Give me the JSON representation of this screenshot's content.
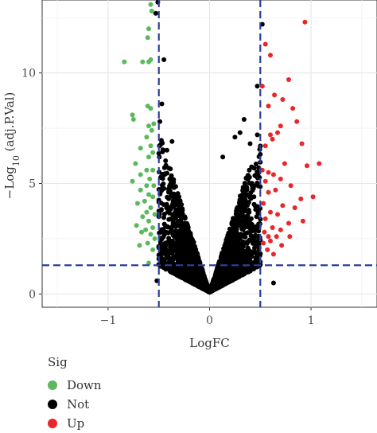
{
  "chart_data": {
    "type": "scatter",
    "xlabel": "LogFC",
    "ylabel_prefix": "−Log",
    "ylabel_sub": "10",
    "ylabel_suffix": " (adj.P.Val)",
    "xlim": [
      -1.65,
      1.65
    ],
    "ylim": [
      -0.6,
      13.3
    ],
    "xticks": [
      -1,
      0,
      1
    ],
    "yticks": [
      0,
      5,
      10
    ],
    "xtick_labels": [
      "−1",
      "0",
      "1"
    ],
    "ytick_labels": [
      "0",
      "5",
      "10"
    ],
    "grid": true,
    "thresholds": {
      "logfc": [
        -0.5,
        0.5
      ],
      "neglog10p": 1.3
    },
    "threshold_color": "#2c3e99",
    "colors": {
      "Down": "#5cb85c",
      "Not": "#000000",
      "Up": "#e8262b"
    },
    "legend": {
      "title": "Sig",
      "placement": "bottom-left",
      "labels": [
        "Down",
        "Not",
        "Up"
      ]
    },
    "series": [
      {
        "name": "Down",
        "points": [
          [
            -0.58,
            13.1
          ],
          [
            -0.57,
            12.8
          ],
          [
            -0.6,
            12.0
          ],
          [
            -0.61,
            11.6
          ],
          [
            -0.84,
            10.5
          ],
          [
            -0.6,
            10.5
          ],
          [
            -0.58,
            10.6
          ],
          [
            -0.66,
            10.5
          ],
          [
            -0.61,
            8.5
          ],
          [
            -0.58,
            8.4
          ],
          [
            -0.76,
            8.1
          ],
          [
            -0.75,
            7.9
          ],
          [
            -0.55,
            7.7
          ],
          [
            -0.6,
            7.6
          ],
          [
            -0.57,
            7.4
          ],
          [
            -0.62,
            7.1
          ],
          [
            -0.58,
            6.7
          ],
          [
            -0.68,
            6.6
          ],
          [
            -0.56,
            6.4
          ],
          [
            -0.6,
            6.2
          ],
          [
            -0.73,
            5.9
          ],
          [
            -0.62,
            5.6
          ],
          [
            -0.56,
            5.6
          ],
          [
            -0.68,
            5.4
          ],
          [
            -0.59,
            5.2
          ],
          [
            -0.76,
            5.1
          ],
          [
            -0.62,
            4.9
          ],
          [
            -0.55,
            4.9
          ],
          [
            -0.68,
            4.7
          ],
          [
            -0.6,
            4.5
          ],
          [
            -0.56,
            4.4
          ],
          [
            -0.64,
            4.2
          ],
          [
            -0.71,
            4.1
          ],
          [
            -0.58,
            3.9
          ],
          [
            -0.62,
            3.7
          ],
          [
            -0.54,
            3.6
          ],
          [
            -0.66,
            3.5
          ],
          [
            -0.6,
            3.3
          ],
          [
            -0.72,
            3.1
          ],
          [
            -0.56,
            3.0
          ],
          [
            -0.63,
            2.9
          ],
          [
            -0.67,
            2.8
          ],
          [
            -0.58,
            2.7
          ],
          [
            -0.54,
            2.5
          ],
          [
            -0.61,
            2.3
          ],
          [
            -0.69,
            2.2
          ],
          [
            -0.56,
            2.0
          ],
          [
            -0.6,
            1.4
          ]
        ]
      },
      {
        "name": "Up",
        "points": [
          [
            0.94,
            12.3
          ],
          [
            0.55,
            11.3
          ],
          [
            0.6,
            10.8
          ],
          [
            0.78,
            9.7
          ],
          [
            0.52,
            9.4
          ],
          [
            0.64,
            9.0
          ],
          [
            0.72,
            8.8
          ],
          [
            0.58,
            8.5
          ],
          [
            0.82,
            8.4
          ],
          [
            0.86,
            7.8
          ],
          [
            0.7,
            7.6
          ],
          [
            0.6,
            7.2
          ],
          [
            0.67,
            7.3
          ],
          [
            0.62,
            7.0
          ],
          [
            0.91,
            6.8
          ],
          [
            0.55,
            6.7
          ],
          [
            1.08,
            5.9
          ],
          [
            0.96,
            5.8
          ],
          [
            0.74,
            5.9
          ],
          [
            0.52,
            5.6
          ],
          [
            0.58,
            5.5
          ],
          [
            0.63,
            5.4
          ],
          [
            0.7,
            5.2
          ],
          [
            0.55,
            5.1
          ],
          [
            0.8,
            4.9
          ],
          [
            0.65,
            4.7
          ],
          [
            0.58,
            4.6
          ],
          [
            1.02,
            4.4
          ],
          [
            0.9,
            4.3
          ],
          [
            0.53,
            4.1
          ],
          [
            0.72,
            4.0
          ],
          [
            0.84,
            3.9
          ],
          [
            0.6,
            3.7
          ],
          [
            0.67,
            3.6
          ],
          [
            0.55,
            3.4
          ],
          [
            0.92,
            3.3
          ],
          [
            0.78,
            3.2
          ],
          [
            0.62,
            3.0
          ],
          [
            0.7,
            2.9
          ],
          [
            0.54,
            2.8
          ],
          [
            0.58,
            2.6
          ],
          [
            0.66,
            2.6
          ],
          [
            0.79,
            2.6
          ],
          [
            0.6,
            2.4
          ],
          [
            0.53,
            2.3
          ],
          [
            0.71,
            2.2
          ],
          [
            0.57,
            2.0
          ],
          [
            0.63,
            1.8
          ]
        ]
      },
      {
        "name": "Not",
        "points": [
          [
            -0.51,
            13.2
          ],
          [
            -0.53,
            12.7
          ],
          [
            0.52,
            12.2
          ],
          [
            -0.45,
            10.6
          ],
          [
            0.47,
            9.4
          ],
          [
            -0.47,
            8.6
          ],
          [
            0.34,
            7.9
          ],
          [
            -0.49,
            7.8
          ],
          [
            0.3,
            7.3
          ],
          [
            0.25,
            7.1
          ],
          [
            0.47,
            7.2
          ],
          [
            -0.37,
            6.9
          ],
          [
            0.4,
            6.8
          ],
          [
            -0.42,
            6.5
          ],
          [
            0.13,
            6.2
          ],
          [
            0.63,
            0.5
          ],
          [
            -0.52,
            0.6
          ]
        ],
        "cloud": {
          "count": 3400,
          "x_range": [
            -0.5,
            0.5
          ],
          "vertex_y": 0.08,
          "upper_envelope_slope": 14.5,
          "lower_envelope_slope": 2.4
        }
      }
    ]
  }
}
